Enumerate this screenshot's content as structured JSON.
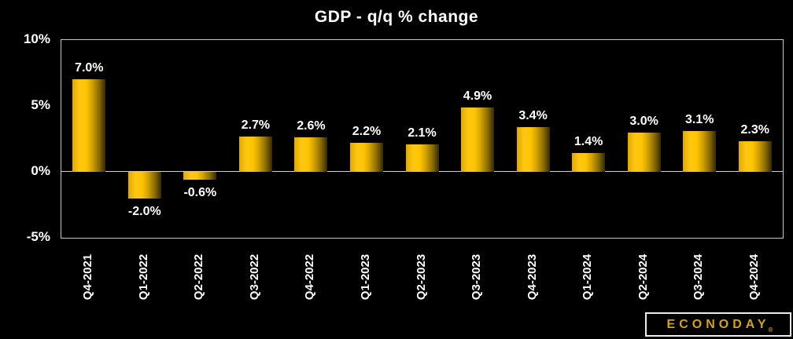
{
  "chart_data": {
    "type": "bar",
    "title": "GDP - q/q % change",
    "categories": [
      "Q4-2021",
      "Q1-2022",
      "Q2-2022",
      "Q3-2022",
      "Q4-2022",
      "Q1-2023",
      "Q2-2023",
      "Q3-2023",
      "Q4-2023",
      "Q1-2024",
      "Q2-2024",
      "Q3-2024",
      "Q4-2024"
    ],
    "values": [
      7.0,
      -2.0,
      -0.6,
      2.7,
      2.6,
      2.2,
      2.1,
      4.9,
      3.4,
      1.4,
      3.0,
      3.1,
      2.3
    ],
    "data_labels": [
      "7.0%",
      "-2.0%",
      "-0.6%",
      "2.7%",
      "2.6%",
      "2.2%",
      "2.1%",
      "4.9%",
      "3.4%",
      "1.4%",
      "3.0%",
      "3.1%",
      "2.3%"
    ],
    "xlabel": "",
    "ylabel": "",
    "ylim": [
      -5,
      10
    ],
    "yticks": [
      {
        "value": 10,
        "label": "10%"
      },
      {
        "value": 5,
        "label": "5%"
      },
      {
        "value": 0,
        "label": "0%"
      },
      {
        "value": -5,
        "label": "-5%"
      }
    ],
    "grid": "zero-line-only",
    "legend": "none",
    "bar_color_main": "#ffc400",
    "bar_color_dark_edge": "#352900",
    "background_color": "#000000",
    "text_color": "#ffffff",
    "axis_border_color": "#c8c8c8"
  },
  "logo": {
    "text": "ECONODAY",
    "registered_mark": "®",
    "color": "#d2a410"
  }
}
